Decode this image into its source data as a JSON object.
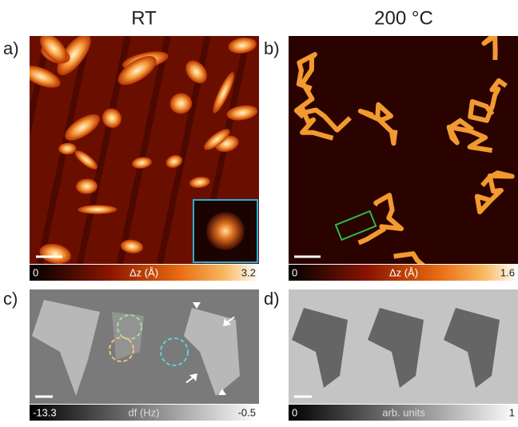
{
  "columns": {
    "left": "RT",
    "right": "200 °C"
  },
  "panels": [
    {
      "label": "a)",
      "colorbar": {
        "min": "0",
        "title": "Δz (Å)",
        "max": "3.2"
      }
    },
    {
      "label": "b)",
      "colorbar": {
        "min": "0",
        "title": "Δz (Å)",
        "max": "1.6"
      }
    },
    {
      "label": "c)",
      "colorbar": {
        "min": "-13.3",
        "title": "df (Hz)",
        "max": "-0.5"
      }
    },
    {
      "label": "d)",
      "colorbar": {
        "min": "0",
        "title": "arb. units",
        "max": "1"
      }
    }
  ]
}
